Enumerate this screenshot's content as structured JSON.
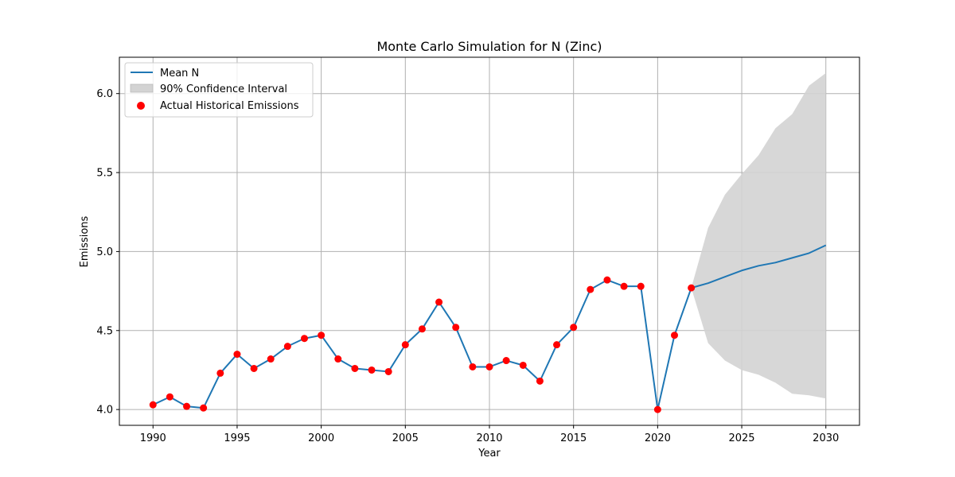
{
  "chart_data": {
    "type": "line",
    "title": "Monte Carlo Simulation for N (Zinc)",
    "xlabel": "Year",
    "ylabel": "Emissions",
    "xlim": [
      1988,
      2032
    ],
    "ylim": [
      3.9,
      6.23
    ],
    "xticks": [
      1990,
      1995,
      2000,
      2005,
      2010,
      2015,
      2020,
      2025,
      2030
    ],
    "yticks": [
      4.0,
      4.5,
      5.0,
      5.5,
      6.0
    ],
    "ytick_labels": [
      "4.0",
      "4.5",
      "5.0",
      "5.5",
      "6.0"
    ],
    "grid": true,
    "legend_position": "top-left",
    "colors": {
      "mean_line": "#1f77b4",
      "interval_fill": "#d3d3d3",
      "points": "#ff0000",
      "grid": "#b0b0b0"
    },
    "series": [
      {
        "name": "Mean N",
        "kind": "line",
        "x": [
          1990,
          1991,
          1992,
          1993,
          1994,
          1995,
          1996,
          1997,
          1998,
          1999,
          2000,
          2001,
          2002,
          2003,
          2004,
          2005,
          2006,
          2007,
          2008,
          2009,
          2010,
          2011,
          2012,
          2013,
          2014,
          2015,
          2016,
          2017,
          2018,
          2019,
          2020,
          2021,
          2022,
          2023,
          2024,
          2025,
          2026,
          2027,
          2028,
          2029,
          2030
        ],
        "y": [
          4.03,
          4.08,
          4.02,
          4.01,
          4.23,
          4.35,
          4.26,
          4.32,
          4.4,
          4.45,
          4.47,
          4.32,
          4.26,
          4.25,
          4.24,
          4.41,
          4.51,
          4.68,
          4.52,
          4.27,
          4.27,
          4.31,
          4.28,
          4.18,
          4.41,
          4.52,
          4.76,
          4.82,
          4.78,
          4.78,
          4.0,
          4.47,
          4.77,
          4.8,
          4.84,
          4.88,
          4.91,
          4.93,
          4.96,
          4.99,
          5.04
        ]
      },
      {
        "name": "90% Confidence Interval",
        "kind": "band",
        "x": [
          2022,
          2023,
          2024,
          2025,
          2026,
          2027,
          2028,
          2029,
          2030
        ],
        "lower": [
          4.77,
          4.42,
          4.31,
          4.25,
          4.22,
          4.17,
          4.1,
          4.09,
          4.07
        ],
        "upper": [
          4.77,
          5.15,
          5.36,
          5.49,
          5.61,
          5.78,
          5.87,
          6.05,
          6.13
        ]
      },
      {
        "name": "Actual Historical Emissions",
        "kind": "scatter",
        "x": [
          1990,
          1991,
          1992,
          1993,
          1994,
          1995,
          1996,
          1997,
          1998,
          1999,
          2000,
          2001,
          2002,
          2003,
          2004,
          2005,
          2006,
          2007,
          2008,
          2009,
          2010,
          2011,
          2012,
          2013,
          2014,
          2015,
          2016,
          2017,
          2018,
          2019,
          2020,
          2021,
          2022
        ],
        "y": [
          4.03,
          4.08,
          4.02,
          4.01,
          4.23,
          4.35,
          4.26,
          4.32,
          4.4,
          4.45,
          4.47,
          4.32,
          4.26,
          4.25,
          4.24,
          4.41,
          4.51,
          4.68,
          4.52,
          4.27,
          4.27,
          4.31,
          4.28,
          4.18,
          4.41,
          4.52,
          4.76,
          4.82,
          4.78,
          4.78,
          4.0,
          4.47,
          4.77
        ]
      }
    ]
  }
}
